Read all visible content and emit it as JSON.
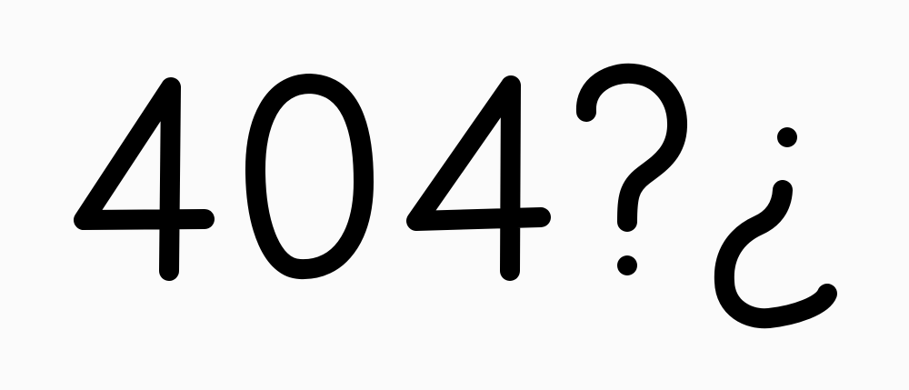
{
  "text": "404?¿",
  "glyphs": [
    "4",
    "0",
    "4",
    "?",
    "¿"
  ],
  "colors": {
    "background": "#fbfbfb",
    "ink": "#000000"
  }
}
